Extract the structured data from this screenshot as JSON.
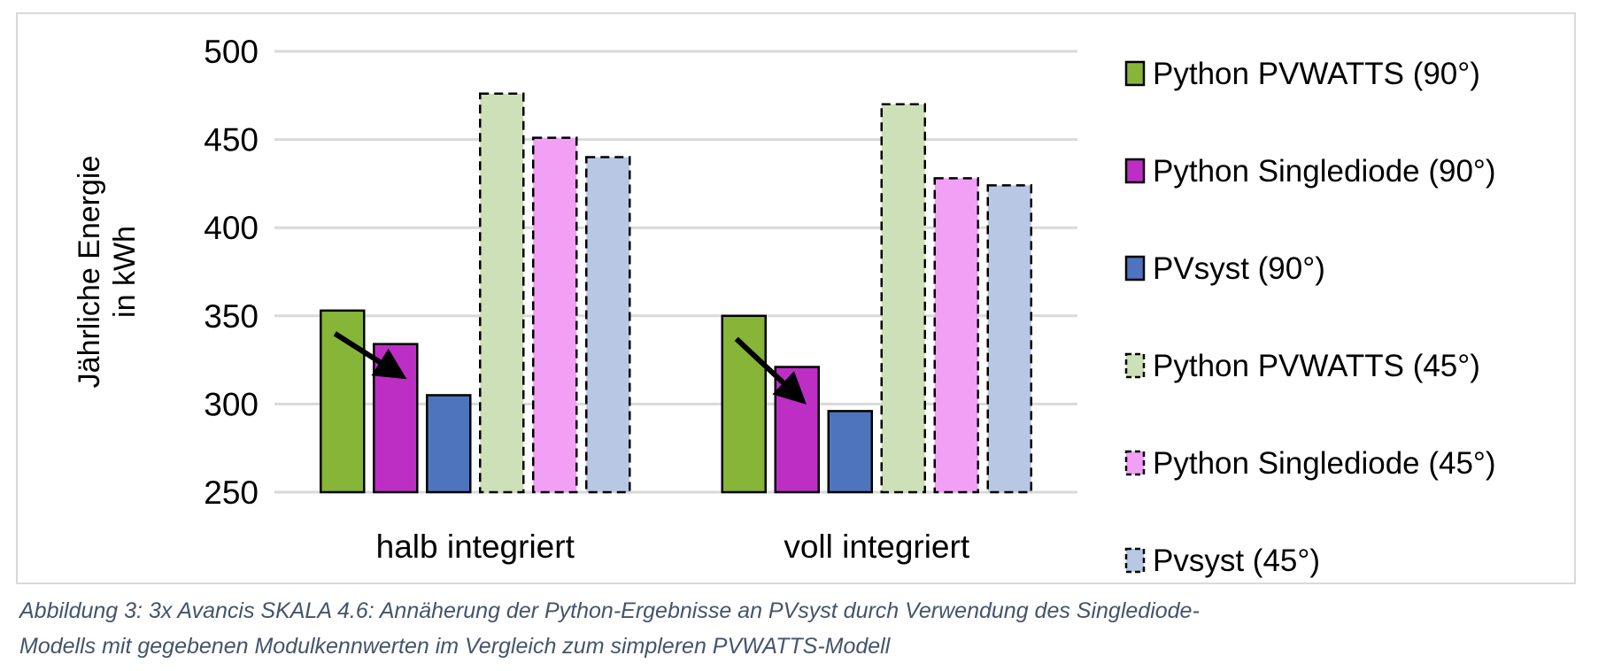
{
  "chart_data": {
    "type": "bar",
    "title": "",
    "xlabel": "",
    "ylabel": "Jährliche Energie in kWh",
    "ylabel_lines": [
      "Jährliche Energie",
      "in kWh"
    ],
    "ylim": [
      250,
      500
    ],
    "yticks": [
      250,
      300,
      350,
      400,
      450,
      500
    ],
    "grid": true,
    "legend_position": "right",
    "categories": [
      "halb integriert",
      "voll integriert"
    ],
    "series": [
      {
        "name": "Python PVWATTS (90°)",
        "values": [
          353,
          350
        ],
        "color": "#86b537",
        "dashed": false
      },
      {
        "name": "Python Singlediode (90°)",
        "values": [
          334,
          321
        ],
        "color": "#bc2ec4",
        "dashed": false
      },
      {
        "name": "PVsyst (90°)",
        "values": [
          305,
          296
        ],
        "color": "#4f74be",
        "dashed": false
      },
      {
        "name": "Python PVWATTS (45°)",
        "values": [
          476,
          470
        ],
        "color": "#cde0b8",
        "dashed": true
      },
      {
        "name": "Python Singlediode (45°)",
        "values": [
          451,
          428
        ],
        "color": "#f1a0f5",
        "dashed": true
      },
      {
        "name": "Pvsyst (45°)",
        "values": [
          440,
          424
        ],
        "color": "#b8c8e4",
        "dashed": true
      }
    ],
    "annotations": [
      "arrow from Python PVWATTS (90°) to Python Singlediode (90°) in each group"
    ]
  },
  "caption": {
    "line1": "Abbildung 3: 3x Avancis SKALA 4.6: Annäherung der Python-Ergebnisse an PVsyst durch Verwendung des Singlediode-",
    "line2": "Modells mit gegebenen Modulkennwerten im Vergleich zum simpleren PVWATTS-Modell"
  }
}
